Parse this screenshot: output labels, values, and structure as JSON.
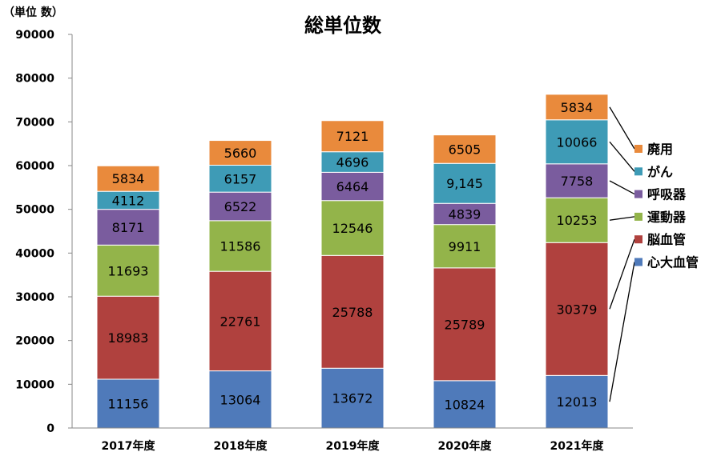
{
  "chart_data": {
    "type": "bar",
    "stacked": true,
    "title": "総単位数",
    "ylabel": "（単位 数）",
    "ylim": [
      0,
      90000
    ],
    "yticks": [
      0,
      10000,
      20000,
      30000,
      40000,
      50000,
      60000,
      70000,
      80000,
      90000
    ],
    "categories": [
      "2017年度",
      "2018年度",
      "2019年度",
      "2020年度",
      "2021年度"
    ],
    "grid": false,
    "legend_position": "right",
    "series": [
      {
        "name": "心大血管",
        "color": "#4F7ABA",
        "values": [
          11156,
          13064,
          13672,
          10824,
          12013
        ],
        "labels": [
          "11156",
          "13064",
          "13672",
          "10824",
          "12013"
        ]
      },
      {
        "name": "脳血管",
        "color": "#B0413E",
        "values": [
          18983,
          22761,
          25788,
          25789,
          30379
        ],
        "labels": [
          "18983",
          "22761",
          "25788",
          "25789",
          "30379"
        ]
      },
      {
        "name": "運動器",
        "color": "#93B44A",
        "values": [
          11693,
          11586,
          12546,
          9911,
          10253
        ],
        "labels": [
          "11693",
          "11586",
          "12546",
          "9911",
          "10253"
        ]
      },
      {
        "name": "呼吸器",
        "color": "#7A5C9E",
        "values": [
          8171,
          6522,
          6464,
          4839,
          7758
        ],
        "labels": [
          "8171",
          "6522",
          "6464",
          "4839",
          "7758"
        ]
      },
      {
        "name": "がん",
        "color": "#3E9BB6",
        "values": [
          4112,
          6157,
          4696,
          9145,
          10066
        ],
        "labels": [
          "4112",
          "6157",
          "4696",
          "9,145",
          "10066"
        ]
      },
      {
        "name": "廃用",
        "color": "#E98A3C",
        "values": [
          5834,
          5660,
          7121,
          6505,
          5834
        ],
        "labels": [
          "5834",
          "5660",
          "7121",
          "6505",
          "5834"
        ]
      }
    ]
  }
}
